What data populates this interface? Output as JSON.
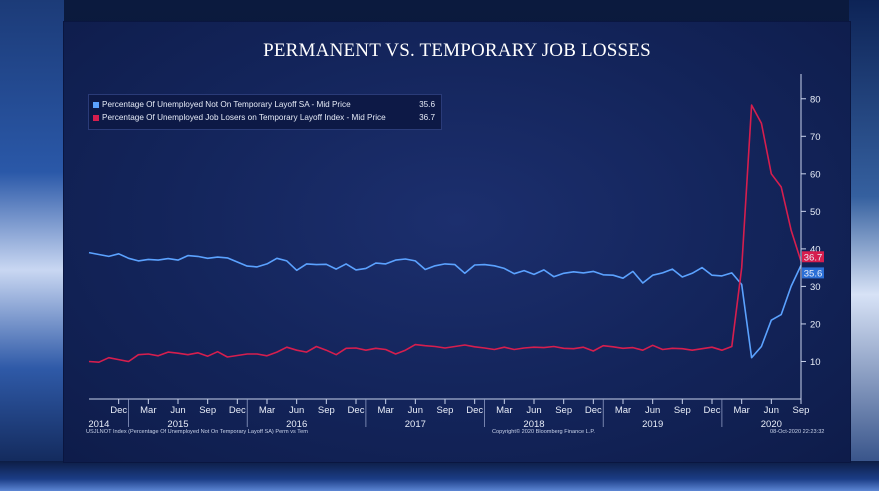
{
  "title": "PERMANENT VS. TEMPORARY JOB LOSSES",
  "legend": [
    {
      "label": "Percentage Of Unemployed Not On Temporary Layoff SA - Mid Price",
      "value": "35.6",
      "color": "#5ba2ff"
    },
    {
      "label": "Percentage Of Unemployed Job Losers on Temporary Layoff Index - Mid Price",
      "value": "36.7",
      "color": "#d61e4e"
    }
  ],
  "footer": {
    "left": "USJLNOT Index (Percentage Of Unemployed Not On Temporary Layoff SA) Perm vs Tem",
    "center": "Copyright© 2020 Bloomberg Finance L.P.",
    "right": "08-Oct-2020 22:23:32"
  },
  "chart_data": {
    "type": "line",
    "title": "PERMANENT VS. TEMPORARY JOB LOSSES",
    "x_start": "2014-09",
    "x_end": "2020-09",
    "ylim": [
      0,
      85
    ],
    "yticks": [
      10,
      20,
      30,
      40,
      50,
      60,
      70,
      80
    ],
    "month_ticks": [
      {
        "label": "Dec",
        "month": 3
      },
      {
        "label": "Mar",
        "month": 6
      },
      {
        "label": "Jun",
        "month": 9
      },
      {
        "label": "Sep",
        "month": 12
      },
      {
        "label": "Dec",
        "month": 15
      },
      {
        "label": "Mar",
        "month": 18
      },
      {
        "label": "Jun",
        "month": 21
      },
      {
        "label": "Sep",
        "month": 24
      },
      {
        "label": "Dec",
        "month": 27
      },
      {
        "label": "Mar",
        "month": 30
      },
      {
        "label": "Jun",
        "month": 33
      },
      {
        "label": "Sep",
        "month": 36
      },
      {
        "label": "Dec",
        "month": 39
      },
      {
        "label": "Mar",
        "month": 42
      },
      {
        "label": "Jun",
        "month": 45
      },
      {
        "label": "Sep",
        "month": 48
      },
      {
        "label": "Dec",
        "month": 51
      },
      {
        "label": "Mar",
        "month": 54
      },
      {
        "label": "Jun",
        "month": 57
      },
      {
        "label": "Sep",
        "month": 60
      },
      {
        "label": "Dec",
        "month": 63
      },
      {
        "label": "Mar",
        "month": 66
      },
      {
        "label": "Jun",
        "month": 69
      },
      {
        "label": "Sep",
        "month": 72
      }
    ],
    "year_ticks": [
      {
        "label": "2014",
        "month": 1
      },
      {
        "label": "2015",
        "month": 9
      },
      {
        "label": "2016",
        "month": 21
      },
      {
        "label": "2017",
        "month": 33
      },
      {
        "label": "2018",
        "month": 45
      },
      {
        "label": "2019",
        "month": 57
      },
      {
        "label": "2020",
        "month": 69
      }
    ],
    "series": [
      {
        "name": "Percentage Of Unemployed Not On Temporary Layoff SA - Mid Price",
        "color": "#5ba2ff",
        "last_value": "35.6",
        "values": [
          39.0,
          38.5,
          38.0,
          38.7,
          37.5,
          36.8,
          37.2,
          37.0,
          37.4,
          37.0,
          38.2,
          38.0,
          37.5,
          37.8,
          37.6,
          36.5,
          35.4,
          35.2,
          36.0,
          37.5,
          36.8,
          34.3,
          36.0,
          35.8,
          35.9,
          34.6,
          36.0,
          34.4,
          34.8,
          36.2,
          36.0,
          37.0,
          37.3,
          36.8,
          34.5,
          35.5,
          36.0,
          35.8,
          33.5,
          35.7,
          35.8,
          35.5,
          34.8,
          33.4,
          34.2,
          33.2,
          34.4,
          32.6,
          33.5,
          33.9,
          33.6,
          34.0,
          33.1,
          33.0,
          32.2,
          34.0,
          30.9,
          33.0,
          33.6,
          34.6,
          32.5,
          33.5,
          35.0,
          33.0,
          32.8,
          33.6,
          30.5,
          11.0,
          14.0,
          21.0,
          22.5,
          30.0,
          35.6
        ]
      },
      {
        "name": "Percentage Of Unemployed Job Losers on Temporary Layoff Index - Mid Price",
        "color": "#d61e4e",
        "last_value": "36.7",
        "values": [
          10.0,
          9.8,
          11.0,
          10.5,
          10.0,
          11.8,
          12.0,
          11.5,
          12.5,
          12.2,
          11.8,
          12.3,
          11.4,
          12.6,
          11.2,
          11.6,
          12.0,
          12.0,
          11.5,
          12.5,
          13.8,
          13.0,
          12.5,
          14.0,
          13.0,
          11.8,
          13.5,
          13.6,
          13.0,
          13.5,
          13.2,
          12.0,
          13.0,
          14.5,
          14.2,
          14.0,
          13.6,
          14.0,
          14.4,
          13.9,
          13.6,
          13.2,
          13.8,
          13.2,
          13.6,
          13.8,
          13.7,
          14.0,
          13.5,
          13.4,
          13.8,
          12.8,
          14.2,
          13.9,
          13.5,
          13.7,
          13.0,
          14.3,
          13.2,
          13.5,
          13.4,
          13.0,
          13.4,
          13.8,
          13.0,
          14.0,
          35.0,
          78.3,
          73.5,
          60.0,
          56.5,
          45.0,
          36.7
        ]
      }
    ]
  }
}
